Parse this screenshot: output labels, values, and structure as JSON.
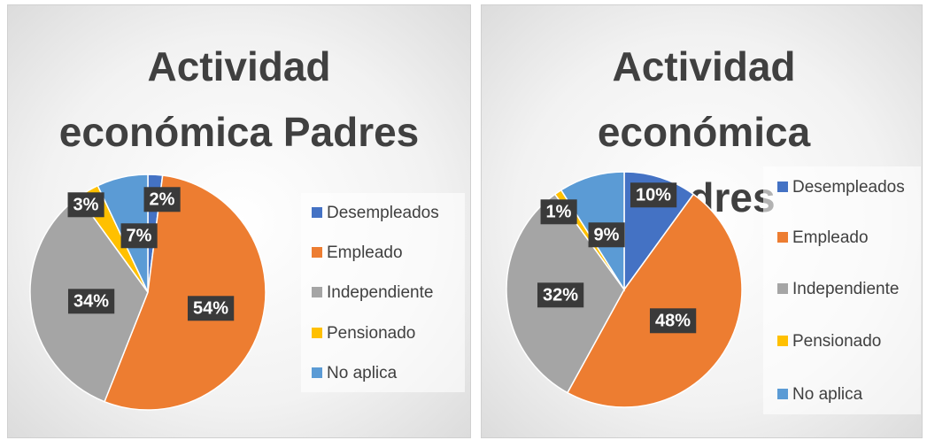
{
  "chart_data": [
    {
      "type": "pie",
      "title": "Actividad económica Padres",
      "categories": [
        "Desempleados",
        "Empleado",
        "Independiente",
        "Pensionado",
        "No aplica"
      ],
      "values": [
        2,
        54,
        34,
        3,
        7
      ],
      "value_labels": [
        "2%",
        "54%",
        "34%",
        "3%",
        "7%"
      ],
      "colors": [
        "#4472c4",
        "#ed7d31",
        "#a5a5a5",
        "#ffc000",
        "#5b9bd5"
      ],
      "legend": "right"
    },
    {
      "type": "pie",
      "title": "Actividad económica Madres",
      "categories": [
        "Desempleados",
        "Empleado",
        "Independiente",
        "Pensionado",
        "No aplica"
      ],
      "values": [
        10,
        48,
        32,
        1,
        9
      ],
      "value_labels": [
        "10%",
        "48%",
        "32%",
        "1%",
        "9%"
      ],
      "colors": [
        "#4472c4",
        "#ed7d31",
        "#a5a5a5",
        "#ffc000",
        "#5b9bd5"
      ],
      "legend": "right"
    }
  ]
}
